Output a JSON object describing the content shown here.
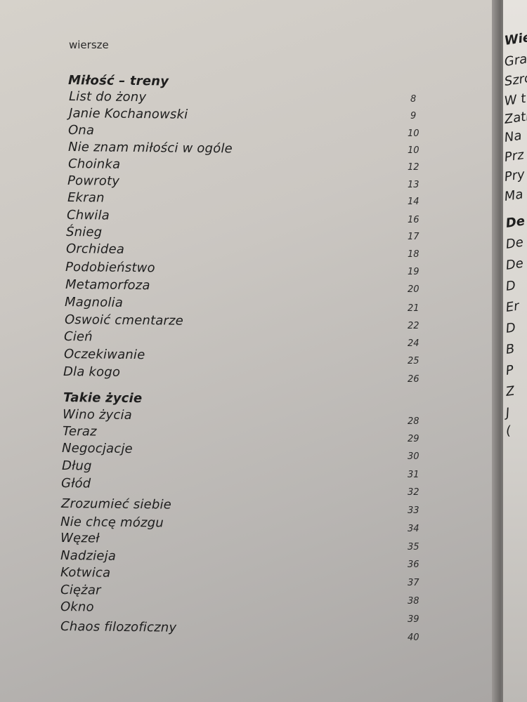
{
  "running_header": "wiersze",
  "sections": [
    {
      "heading": "Miłość – treny",
      "entries": [
        {
          "title": "List do żony",
          "page": "8"
        },
        {
          "title": "Janie Kochanowski",
          "page": "9"
        },
        {
          "title": "Ona",
          "page": "10"
        },
        {
          "title": "Nie znam miłości w ogóle",
          "page": "10"
        },
        {
          "title": "Choinka",
          "page": "12"
        },
        {
          "title": "Powroty",
          "page": "13"
        },
        {
          "title": "Ekran",
          "page": "14"
        },
        {
          "title": "Chwila",
          "page": "16"
        },
        {
          "title": "Śnieg",
          "page": "17"
        },
        {
          "title": "Orchidea",
          "page": "18"
        },
        {
          "title": "Podobieństwo",
          "page": "19"
        },
        {
          "title": "Metamorfoza",
          "page": "20"
        },
        {
          "title": "Magnolia",
          "page": "21"
        },
        {
          "title": "Oswoić cmentarze",
          "page": "22"
        },
        {
          "title": "Cień",
          "page": "24"
        },
        {
          "title": "Oczekiwanie",
          "page": "25"
        },
        {
          "title": "Dla kogo",
          "page": "26"
        }
      ]
    },
    {
      "heading": "Takie życie",
      "entries": [
        {
          "title": "Wino życia",
          "page": "28"
        },
        {
          "title": "Teraz",
          "page": "29"
        },
        {
          "title": "Negocjacje",
          "page": "30"
        },
        {
          "title": "Dług",
          "page": "31"
        },
        {
          "title": "Głód",
          "page": "32"
        },
        {
          "title": "Zrozumieć siebie",
          "page": "33"
        },
        {
          "title": "Nie chcę mózgu",
          "page": "34"
        },
        {
          "title": "Węzeł",
          "page": "35"
        },
        {
          "title": "Nadzieja",
          "page": "36"
        },
        {
          "title": "Kotwica",
          "page": "37"
        },
        {
          "title": "Ciężar",
          "page": "38"
        },
        {
          "title": "Okno",
          "page": "39"
        },
        {
          "title": "Chaos filozoficzny",
          "page": "40"
        }
      ]
    }
  ],
  "right_page_fragments": [
    "Wiek",
    "Gran",
    "Szro",
    "W t",
    "Zatr",
    "Na",
    "Prz",
    "Pry",
    "Ma",
    "De",
    "De",
    "De",
    "D",
    "Er",
    "D",
    "B",
    "P",
    "Z",
    "J",
    "("
  ]
}
